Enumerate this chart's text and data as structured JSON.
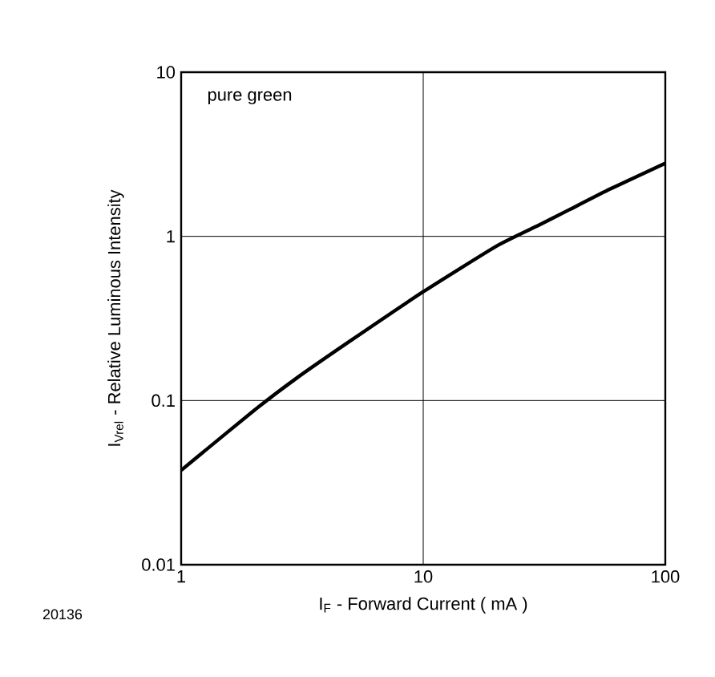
{
  "chart_data": {
    "type": "line",
    "xlabel": "I$_{F}$ - Forward Current ( mA )",
    "ylabel": "I$_{Vrel}$ - Relative Luminous Intensity",
    "annotations": [
      "pure green",
      "20136"
    ],
    "log": "xy",
    "grid": true,
    "xlim": [
      1,
      100
    ],
    "ylim": [
      0.01,
      10
    ],
    "xticks": [
      1,
      10,
      100
    ],
    "yticks": [
      0.01,
      0.1,
      1,
      10
    ],
    "series": [
      {
        "color": "#000000",
        "x": [
          1,
          1.16,
          2,
          3,
          5,
          10,
          20,
          30,
          40,
          59,
          100
        ],
        "values": [
          0.0376,
          0.045,
          0.087,
          0.137,
          0.231,
          0.46,
          0.87,
          1.17,
          1.45,
          1.94,
          2.79
        ]
      }
    ]
  }
}
